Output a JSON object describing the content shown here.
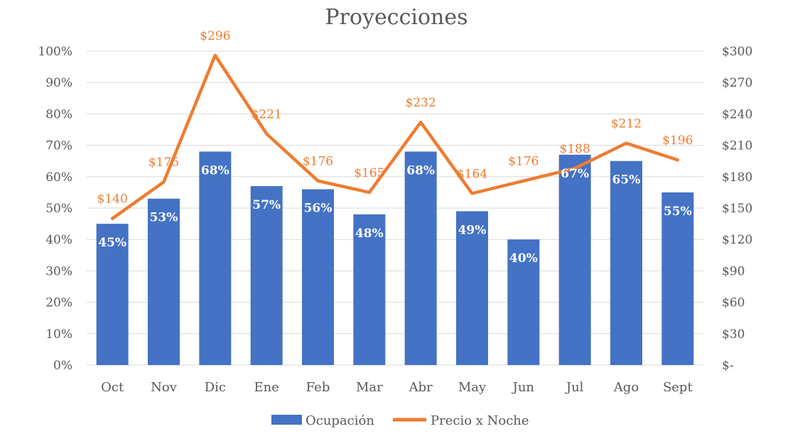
{
  "chart_data": {
    "type": "bar",
    "title": "Proyecciones",
    "categories": [
      "Oct",
      "Nov",
      "Dic",
      "Ene",
      "Feb",
      "Mar",
      "Abr",
      "May",
      "Jun",
      "Jul",
      "Ago",
      "Sept"
    ],
    "series": [
      {
        "name": "Ocupación",
        "type": "bar",
        "axis": "left",
        "color": "#4472c4",
        "values": [
          45,
          53,
          68,
          57,
          56,
          48,
          68,
          49,
          40,
          67,
          65,
          55
        ],
        "labels": [
          "45%",
          "53%",
          "68%",
          "57%",
          "56%",
          "48%",
          "68%",
          "49%",
          "40%",
          "67%",
          "65%",
          "55%"
        ]
      },
      {
        "name": "Precio x Noche",
        "type": "line",
        "axis": "right",
        "color": "#ed7d31",
        "values": [
          140,
          175,
          296,
          221,
          176,
          165,
          232,
          164,
          176,
          188,
          212,
          196
        ],
        "labels": [
          "$140",
          "$175",
          "$296",
          "$221",
          "$176",
          "$165",
          "$232",
          "$164",
          "$176",
          "$188",
          "$212",
          "$196"
        ]
      }
    ],
    "y_left": {
      "range": [
        0,
        100
      ],
      "ticks": [
        0,
        10,
        20,
        30,
        40,
        50,
        60,
        70,
        80,
        90,
        100
      ],
      "tick_labels": [
        "0%",
        "10%",
        "20%",
        "30%",
        "40%",
        "50%",
        "60%",
        "70%",
        "80%",
        "90%",
        "100%"
      ]
    },
    "y_right": {
      "range": [
        0,
        300
      ],
      "ticks": [
        0,
        30,
        60,
        90,
        120,
        150,
        180,
        210,
        240,
        270,
        300
      ],
      "tick_labels": [
        "$-",
        "$30",
        "$60",
        "$90",
        "$120",
        "$150",
        "$180",
        "$210",
        "$240",
        "$270",
        "$300"
      ]
    },
    "grid": true,
    "legend": "bottom",
    "label_colors": {
      "bar": "#ffffff",
      "line": "#ed7d31"
    },
    "text_color": "#595959",
    "grid_color": "#d9d9d9"
  }
}
